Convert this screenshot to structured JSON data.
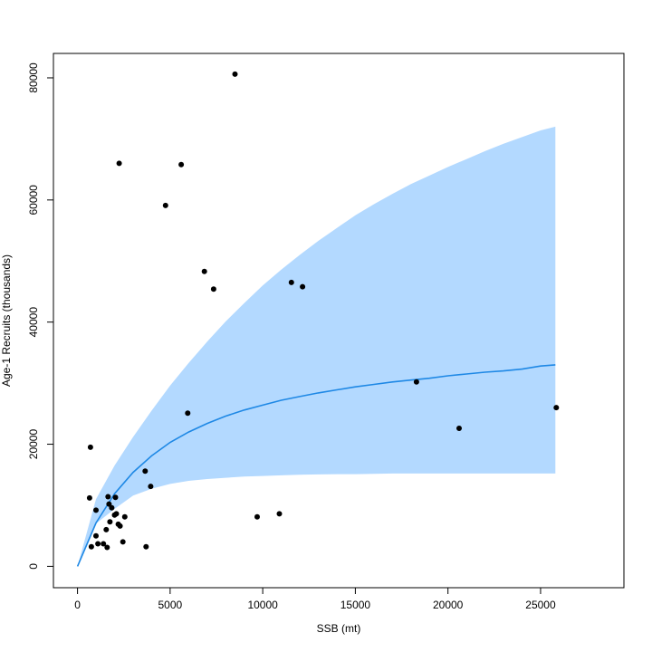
{
  "chart_data": {
    "type": "scatter",
    "xlabel": "SSB (mt)",
    "ylabel": "Age-1 Recruits (thousands)",
    "xlim": [
      -1300,
      29500
    ],
    "ylim": [
      -3500,
      84000
    ],
    "x_ticks": [
      0,
      5000,
      10000,
      15000,
      20000,
      25000
    ],
    "y_ticks": [
      0,
      20000,
      40000,
      60000,
      80000
    ],
    "x_tick_labels": [
      "0",
      "5000",
      "10000",
      "15000",
      "20000",
      "25000"
    ],
    "y_tick_labels": [
      "0",
      "20000",
      "40000",
      "60000",
      "80000"
    ],
    "grid": false,
    "colors": {
      "points": "#000000",
      "fit_line": "#1e88e5",
      "band_fill": "#b3d9ff"
    },
    "fit": {
      "model": "Beverton-Holt",
      "x": [
        0,
        1000,
        2000,
        3000,
        4000,
        5000,
        6000,
        7000,
        8000,
        9000,
        10000,
        11000,
        12000,
        13000,
        14000,
        15000,
        16000,
        17000,
        18000,
        19000,
        20000,
        21000,
        22000,
        23000,
        24000,
        25000,
        25800
      ],
      "y": [
        0,
        7100,
        11900,
        15400,
        18100,
        20300,
        22000,
        23400,
        24600,
        25600,
        26400,
        27200,
        27800,
        28400,
        28900,
        29400,
        29800,
        30200,
        30500,
        30800,
        31200,
        31500,
        31800,
        32000,
        32300,
        32800,
        33000
      ],
      "lower": [
        0,
        7000,
        9400,
        11600,
        12700,
        13500,
        14000,
        14300,
        14500,
        14700,
        14800,
        14900,
        15000,
        15050,
        15100,
        15100,
        15150,
        15200,
        15200,
        15200,
        15200,
        15200,
        15200,
        15200,
        15200,
        15200,
        15200
      ],
      "upper": [
        0,
        11000,
        16500,
        21200,
        25500,
        29600,
        33300,
        36800,
        40100,
        43100,
        46000,
        48600,
        51000,
        53300,
        55400,
        57500,
        59300,
        61000,
        62600,
        64000,
        65400,
        66700,
        68000,
        69200,
        70300,
        71400,
        72000
      ]
    },
    "points": [
      {
        "x": 650,
        "y": 11200
      },
      {
        "x": 700,
        "y": 19500
      },
      {
        "x": 750,
        "y": 3200
      },
      {
        "x": 1000,
        "y": 9200
      },
      {
        "x": 1000,
        "y": 5000
      },
      {
        "x": 1100,
        "y": 3700
      },
      {
        "x": 1400,
        "y": 3700
      },
      {
        "x": 1550,
        "y": 6000
      },
      {
        "x": 1600,
        "y": 3100
      },
      {
        "x": 1650,
        "y": 11400
      },
      {
        "x": 1700,
        "y": 10200
      },
      {
        "x": 1750,
        "y": 7300
      },
      {
        "x": 1850,
        "y": 9600
      },
      {
        "x": 2000,
        "y": 8400
      },
      {
        "x": 2050,
        "y": 11300
      },
      {
        "x": 2100,
        "y": 8600
      },
      {
        "x": 2200,
        "y": 6900
      },
      {
        "x": 2250,
        "y": 66000
      },
      {
        "x": 2300,
        "y": 6600
      },
      {
        "x": 2450,
        "y": 4000
      },
      {
        "x": 2550,
        "y": 8100
      },
      {
        "x": 3650,
        "y": 15600
      },
      {
        "x": 3700,
        "y": 3200
      },
      {
        "x": 3950,
        "y": 13100
      },
      {
        "x": 4750,
        "y": 59100
      },
      {
        "x": 5600,
        "y": 65800
      },
      {
        "x": 5950,
        "y": 25100
      },
      {
        "x": 6850,
        "y": 48300
      },
      {
        "x": 7350,
        "y": 45400
      },
      {
        "x": 8500,
        "y": 80600
      },
      {
        "x": 9700,
        "y": 8100
      },
      {
        "x": 10900,
        "y": 8600
      },
      {
        "x": 11550,
        "y": 46500
      },
      {
        "x": 12150,
        "y": 45800
      },
      {
        "x": 18300,
        "y": 30200
      },
      {
        "x": 20600,
        "y": 22600
      },
      {
        "x": 25850,
        "y": 26000
      }
    ]
  }
}
